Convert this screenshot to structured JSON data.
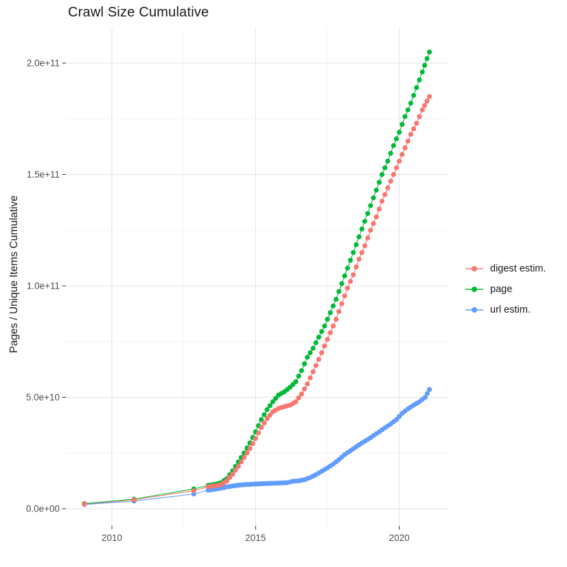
{
  "title": "Crawl Size Cumulative",
  "axes": {
    "y_title": "Pages / Unique Items Cumulative",
    "x_ticks": [
      {
        "value": 2010,
        "label": "2010"
      },
      {
        "value": 2015,
        "label": "2015"
      },
      {
        "value": 2020,
        "label": "2020"
      }
    ],
    "x_minor": [
      2012.5,
      2017.5
    ],
    "y_ticks": [
      {
        "value": 0,
        "label": "0.0e+00"
      },
      {
        "value": 50,
        "label": "5.0e+10"
      },
      {
        "value": 100,
        "label": "1.0e+11"
      },
      {
        "value": 150,
        "label": "1.5e+11"
      },
      {
        "value": 200,
        "label": "2.0e+11"
      }
    ],
    "y_minor": [
      25,
      75,
      125,
      175
    ],
    "x_range": [
      2008.4,
      2021.68
    ],
    "y_range_e9": [
      -7.7,
      215.7
    ]
  },
  "chart_data": {
    "type": "scatter",
    "title": "Crawl Size Cumulative",
    "xlabel": "",
    "ylabel": "Pages / Unique Items Cumulative",
    "x_unit": "year (decimal)",
    "y_unit": "count, values in billions (1e9)",
    "xlim": [
      2008.4,
      2021.68
    ],
    "ylim_e9": [
      0,
      215
    ],
    "grid": true,
    "legend_position": "right",
    "point_style": "filled circle connected by thin line",
    "dense_monthly_after_year": 2013.6,
    "series": [
      {
        "name": "digest estim.",
        "color": "#F8766D",
        "points_year_billion": [
          [
            2009.04,
            2.1
          ],
          [
            2010.77,
            4.0
          ],
          [
            2012.85,
            8.1
          ],
          [
            2013.35,
            9.9
          ],
          [
            2013.6,
            10.3
          ],
          [
            2013.8,
            10.8
          ],
          [
            2014.0,
            12.5
          ],
          [
            2014.2,
            15.5
          ],
          [
            2014.4,
            19.0
          ],
          [
            2014.6,
            23.0
          ],
          [
            2014.8,
            27.0
          ],
          [
            2015.0,
            31.5
          ],
          [
            2015.2,
            36.5
          ],
          [
            2015.4,
            40.5
          ],
          [
            2015.6,
            43.5
          ],
          [
            2015.8,
            45.0
          ],
          [
            2016.0,
            45.8
          ],
          [
            2016.2,
            46.5
          ],
          [
            2016.4,
            48.0
          ],
          [
            2016.6,
            51.5
          ],
          [
            2016.8,
            56.0
          ],
          [
            2017.0,
            61.5
          ],
          [
            2017.2,
            67.0
          ],
          [
            2017.4,
            73.0
          ],
          [
            2017.6,
            79.0
          ],
          [
            2017.8,
            85.0
          ],
          [
            2018.0,
            92.0
          ],
          [
            2018.2,
            99.0
          ],
          [
            2018.4,
            105.0
          ],
          [
            2018.6,
            112.0
          ],
          [
            2018.8,
            118.0
          ],
          [
            2019.0,
            125.0
          ],
          [
            2019.2,
            131.0
          ],
          [
            2019.4,
            138.0
          ],
          [
            2019.6,
            144.0
          ],
          [
            2019.8,
            150.0
          ],
          [
            2020.0,
            156.0
          ],
          [
            2020.2,
            162.0
          ],
          [
            2020.4,
            168.0
          ],
          [
            2020.6,
            173.0
          ],
          [
            2020.8,
            179.0
          ],
          [
            2021.05,
            185.0
          ]
        ]
      },
      {
        "name": "page",
        "color": "#00BA38",
        "points_year_billion": [
          [
            2009.04,
            2.3
          ],
          [
            2010.77,
            4.3
          ],
          [
            2012.85,
            8.9
          ],
          [
            2013.35,
            10.5
          ],
          [
            2013.6,
            11.0
          ],
          [
            2013.8,
            11.7
          ],
          [
            2014.0,
            13.5
          ],
          [
            2014.2,
            17.0
          ],
          [
            2014.4,
            21.0
          ],
          [
            2014.6,
            25.0
          ],
          [
            2014.8,
            29.5
          ],
          [
            2015.0,
            34.5
          ],
          [
            2015.2,
            40.0
          ],
          [
            2015.4,
            44.5
          ],
          [
            2015.6,
            48.0
          ],
          [
            2015.8,
            51.0
          ],
          [
            2016.0,
            52.5
          ],
          [
            2016.2,
            54.5
          ],
          [
            2016.4,
            57.0
          ],
          [
            2016.6,
            62.0
          ],
          [
            2016.8,
            68.0
          ],
          [
            2017.0,
            72.0
          ],
          [
            2017.2,
            77.0
          ],
          [
            2017.4,
            82.0
          ],
          [
            2017.6,
            88.0
          ],
          [
            2017.8,
            94.0
          ],
          [
            2018.0,
            101.0
          ],
          [
            2018.2,
            108.0
          ],
          [
            2018.4,
            115.0
          ],
          [
            2018.6,
            122.0
          ],
          [
            2018.8,
            129.0
          ],
          [
            2019.0,
            136.0
          ],
          [
            2019.2,
            143.0
          ],
          [
            2019.4,
            150.0
          ],
          [
            2019.6,
            156.0
          ],
          [
            2019.8,
            163.0
          ],
          [
            2020.0,
            169.0
          ],
          [
            2020.2,
            176.0
          ],
          [
            2020.4,
            182.0
          ],
          [
            2020.6,
            189.0
          ],
          [
            2020.8,
            196.0
          ],
          [
            2021.05,
            205.0
          ]
        ]
      },
      {
        "name": "url estim.",
        "color": "#619CFF",
        "points_year_billion": [
          [
            2009.04,
            1.9
          ],
          [
            2010.77,
            3.4
          ],
          [
            2012.85,
            6.6
          ],
          [
            2013.35,
            8.3
          ],
          [
            2013.6,
            8.8
          ],
          [
            2013.8,
            9.2
          ],
          [
            2014.0,
            9.8
          ],
          [
            2014.3,
            10.4
          ],
          [
            2014.6,
            10.8
          ],
          [
            2014.9,
            11.0
          ],
          [
            2015.2,
            11.2
          ],
          [
            2015.5,
            11.35
          ],
          [
            2015.8,
            11.5
          ],
          [
            2016.1,
            11.7
          ],
          [
            2016.3,
            12.3
          ],
          [
            2016.5,
            12.5
          ],
          [
            2016.7,
            13.0
          ],
          [
            2016.9,
            14.0
          ],
          [
            2017.1,
            15.3
          ],
          [
            2017.3,
            16.8
          ],
          [
            2017.5,
            18.3
          ],
          [
            2017.7,
            20.0
          ],
          [
            2017.9,
            22.0
          ],
          [
            2018.1,
            24.3
          ],
          [
            2018.3,
            26.0
          ],
          [
            2018.5,
            27.8
          ],
          [
            2018.7,
            29.5
          ],
          [
            2018.9,
            31.0
          ],
          [
            2019.1,
            32.8
          ],
          [
            2019.3,
            34.5
          ],
          [
            2019.5,
            36.3
          ],
          [
            2019.7,
            38.0
          ],
          [
            2019.9,
            40.0
          ],
          [
            2020.1,
            42.8
          ],
          [
            2020.3,
            44.8
          ],
          [
            2020.5,
            46.5
          ],
          [
            2020.7,
            48.0
          ],
          [
            2020.9,
            50.0
          ],
          [
            2021.05,
            53.5
          ]
        ]
      }
    ]
  }
}
